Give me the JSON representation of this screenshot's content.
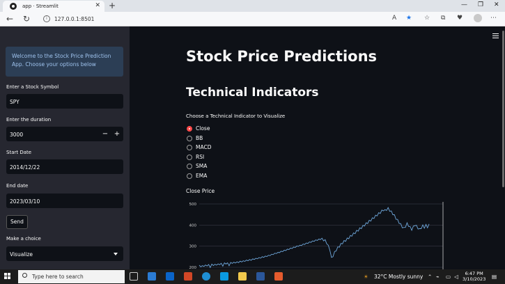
{
  "browser": {
    "tab_title": "app · Streamlit",
    "url": "127.0.0.1:8501"
  },
  "sidebar": {
    "welcome": "Welcome to the Stock Price Prediction App. Choose your options below",
    "symbol_label": "Enter a Stock Symbol",
    "symbol_value": "SPY",
    "duration_label": "Enter the duration",
    "duration_value": "3000",
    "start_label": "Start Date",
    "start_value": "2014/12/22",
    "end_label": "End date",
    "end_value": "2023/03/10",
    "send_label": "Send",
    "choice_label": "Make a choice",
    "choice_value": "Visualize"
  },
  "main": {
    "title": "Stock Price Predictions",
    "subtitle": "Technical Indicators",
    "radio_label": "Choose a Technical Indicator to Visualize",
    "options": [
      "Close",
      "BB",
      "MACD",
      "RSI",
      "SMA",
      "EMA"
    ],
    "selected": "Close",
    "chart_title": "Close Price"
  },
  "chart_data": {
    "type": "line",
    "title": "Close Price",
    "ylim": [
      190,
      510
    ],
    "yticks": [
      200,
      300,
      400,
      500
    ],
    "series": [
      {
        "values": [
          205,
          207,
          203,
          209,
          206,
          211,
          208,
          204,
          210,
          213,
          209,
          215,
          211,
          217,
          214,
          210,
          216,
          220,
          216,
          212,
          218,
          223,
          219,
          225,
          221,
          227,
          224,
          230,
          226,
          233,
          229,
          236,
          232,
          238,
          235,
          242,
          238,
          245,
          241,
          248,
          245,
          252,
          248,
          256,
          252,
          260,
          257,
          265,
          262,
          270,
          266,
          274,
          271,
          279,
          276,
          284,
          281,
          289,
          286,
          294,
          291,
          299,
          296,
          304,
          300,
          308,
          305,
          313,
          310,
          318,
          315,
          323,
          320,
          328,
          325,
          332,
          329,
          336,
          333,
          330,
          326,
          316,
          300,
          285,
          242,
          255,
          270,
          282,
          292,
          300,
          308,
          316,
          322,
          328,
          334,
          340,
          346,
          352,
          358,
          364,
          370,
          376,
          382,
          388,
          394,
          400,
          406,
          412,
          418,
          424,
          430,
          436,
          442,
          448,
          454,
          460,
          466,
          472,
          468,
          474,
          478,
          470,
          462,
          454,
          444,
          432,
          422,
          412,
          402,
          392,
          384,
          394,
          406,
          398,
          388,
          380,
          390,
          402,
          394,
          386,
          378,
          388,
          396,
          390,
          398,
          392,
          400
        ]
      }
    ]
  },
  "taskbar": {
    "search_placeholder": "Type here to search",
    "weather": "32°C  Mostly sunny",
    "time": "6:47 PM",
    "date": "3/10/2023"
  }
}
